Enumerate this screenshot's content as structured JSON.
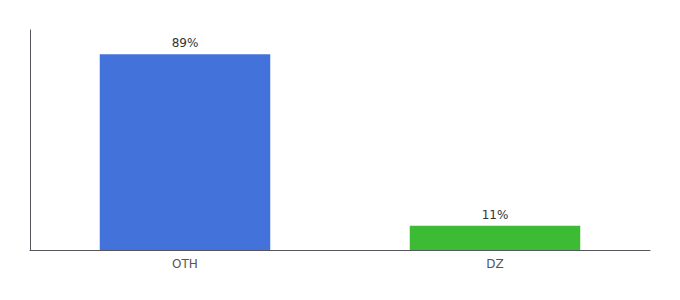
{
  "chart_data": {
    "type": "bar",
    "categories": [
      "OTH",
      "DZ"
    ],
    "values": [
      89,
      11
    ],
    "value_labels": [
      "89%",
      "11%"
    ],
    "colors": [
      "#4472db",
      "#3dbb35"
    ],
    "ylim": [
      0,
      100
    ],
    "data_labels": true,
    "tick_labels": "x",
    "grid": false
  }
}
